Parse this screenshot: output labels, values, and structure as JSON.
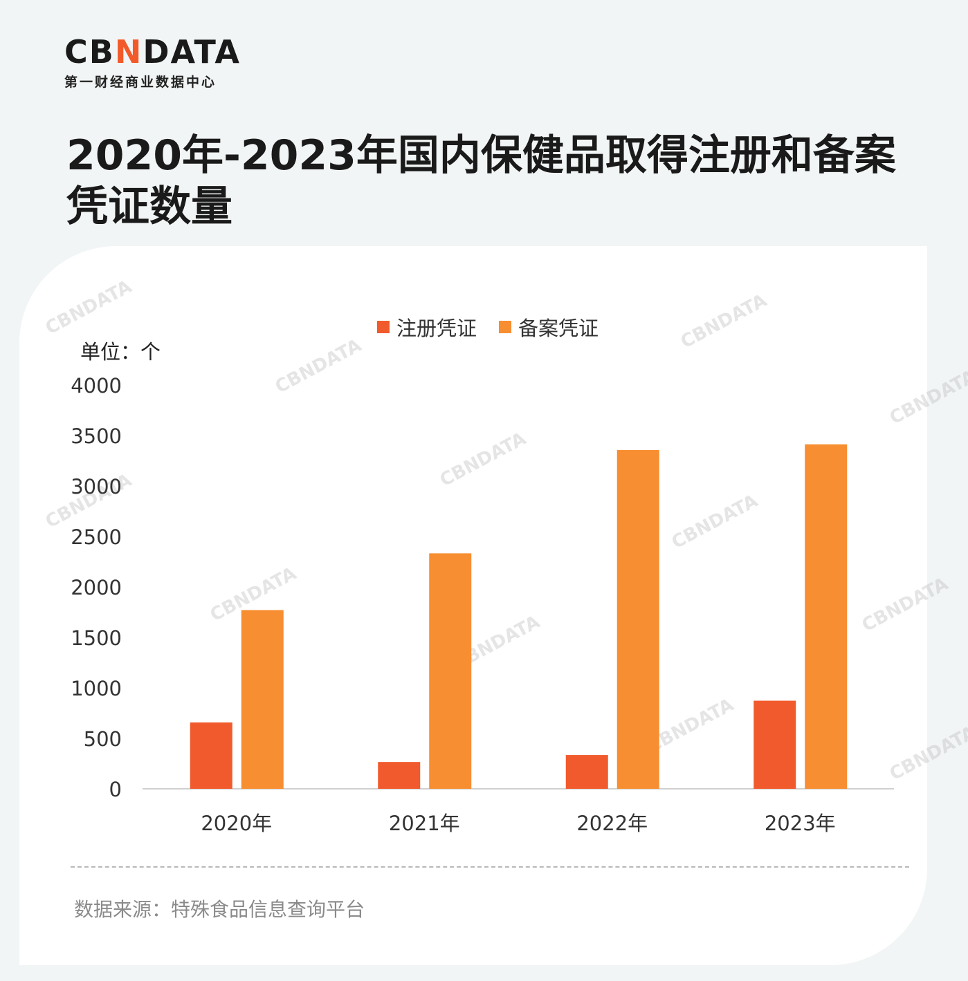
{
  "logo": {
    "pre": "CB",
    "accent": "N",
    "post": "DATA",
    "subtitle": "第一财经商业数据中心"
  },
  "title": "2020年-2023年国内保健品取得注册和备案凭证数量",
  "unit_label": "单位：个",
  "source": "数据来源：特殊食品信息查询平台",
  "watermark_text": "CBNDATA",
  "colors": {
    "background": "#f2f5f6",
    "card": "#ffffff",
    "registration": "#f15a2c",
    "filing": "#f78e31",
    "axis": "#d0d0d0"
  },
  "chart_data": {
    "type": "bar",
    "categories": [
      "2020年",
      "2021年",
      "2022年",
      "2023年"
    ],
    "series": [
      {
        "name": "注册凭证",
        "color": "#f15a2c",
        "values": [
          657,
          266,
          335,
          873
        ]
      },
      {
        "name": "备案凭证",
        "color": "#f78e31",
        "values": [
          1771,
          2333,
          3356,
          3413
        ]
      }
    ],
    "yticks": [
      0,
      500,
      1000,
      1500,
      2000,
      2500,
      3000,
      3500,
      4000
    ],
    "ylim": [
      0,
      4000
    ],
    "legend_position": "top-center",
    "grid": false
  }
}
